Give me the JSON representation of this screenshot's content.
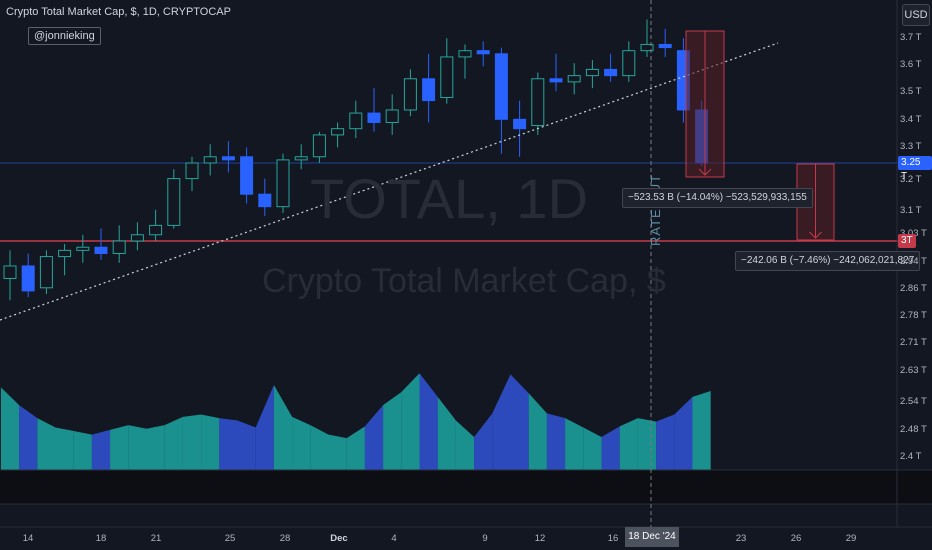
{
  "header": {
    "title": "Crypto Total Market Cap, $, 1D, CRYPTOCAP",
    "author": "@jonnieking",
    "currency": "USD"
  },
  "watermark": {
    "symbol": "TOTAL, 1D",
    "name": "Crypto Total Market Cap, $"
  },
  "annotation": {
    "rate_cut": "RATE CUT"
  },
  "price_axis": {
    "labels": [
      "3.7 T",
      "3.6 T",
      "3.5 T",
      "3.4 T",
      "3.3 T",
      "3.2 T",
      "3.1 T",
      "3.03 T",
      "2.94 T",
      "2.86 T",
      "2.78 T",
      "2.71 T",
      "2.63 T",
      "2.54 T",
      "2.48 T",
      "2.4 T"
    ],
    "current_price": "3.25 T",
    "level_price": "3T"
  },
  "time_axis": {
    "labels": [
      "14",
      "18",
      "21",
      "25",
      "28",
      "Dec",
      "4",
      "9",
      "12",
      "16",
      "23",
      "26",
      "29"
    ],
    "cursor_date": "18 Dec '24"
  },
  "measurements": [
    {
      "text": "−523.53 B (−14.04%) −523,529,933,155"
    },
    {
      "text": "−242.06 B (−7.46%) −242,062,021,827"
    }
  ],
  "colors": {
    "background": "#131722",
    "up": "#26a69a",
    "down": "#2962ff",
    "level_line": "#c43a4b",
    "current_line": "#2962ff",
    "measure_fill": "#5a1f27"
  },
  "chart_data": {
    "type": "candlestick",
    "unit": "T USD",
    "candles": [
      {
        "o": 2.88,
        "h": 2.97,
        "l": 2.81,
        "c": 2.92
      },
      {
        "o": 2.92,
        "h": 2.96,
        "l": 2.82,
        "c": 2.84
      },
      {
        "o": 2.85,
        "h": 2.97,
        "l": 2.83,
        "c": 2.95
      },
      {
        "o": 2.95,
        "h": 2.99,
        "l": 2.89,
        "c": 2.97
      },
      {
        "o": 2.97,
        "h": 3.02,
        "l": 2.93,
        "c": 2.98
      },
      {
        "o": 2.98,
        "h": 3.04,
        "l": 2.94,
        "c": 2.96
      },
      {
        "o": 2.96,
        "h": 3.05,
        "l": 2.93,
        "c": 3.0
      },
      {
        "o": 3.0,
        "h": 3.06,
        "l": 2.97,
        "c": 3.02
      },
      {
        "o": 3.02,
        "h": 3.1,
        "l": 3.0,
        "c": 3.05
      },
      {
        "o": 3.05,
        "h": 3.23,
        "l": 3.04,
        "c": 3.2
      },
      {
        "o": 3.2,
        "h": 3.27,
        "l": 3.16,
        "c": 3.25
      },
      {
        "o": 3.25,
        "h": 3.31,
        "l": 3.21,
        "c": 3.27
      },
      {
        "o": 3.27,
        "h": 3.32,
        "l": 3.22,
        "c": 3.26
      },
      {
        "o": 3.27,
        "h": 3.3,
        "l": 3.12,
        "c": 3.15
      },
      {
        "o": 3.15,
        "h": 3.2,
        "l": 3.08,
        "c": 3.11
      },
      {
        "o": 3.11,
        "h": 3.28,
        "l": 3.09,
        "c": 3.26
      },
      {
        "o": 3.26,
        "h": 3.31,
        "l": 3.23,
        "c": 3.27
      },
      {
        "o": 3.27,
        "h": 3.35,
        "l": 3.25,
        "c": 3.34
      },
      {
        "o": 3.34,
        "h": 3.38,
        "l": 3.3,
        "c": 3.36
      },
      {
        "o": 3.36,
        "h": 3.45,
        "l": 3.33,
        "c": 3.41
      },
      {
        "o": 3.41,
        "h": 3.49,
        "l": 3.35,
        "c": 3.38
      },
      {
        "o": 3.38,
        "h": 3.47,
        "l": 3.34,
        "c": 3.42
      },
      {
        "o": 3.42,
        "h": 3.55,
        "l": 3.4,
        "c": 3.52
      },
      {
        "o": 3.52,
        "h": 3.6,
        "l": 3.38,
        "c": 3.45
      },
      {
        "o": 3.46,
        "h": 3.65,
        "l": 3.44,
        "c": 3.59
      },
      {
        "o": 3.59,
        "h": 3.63,
        "l": 3.52,
        "c": 3.61
      },
      {
        "o": 3.61,
        "h": 3.64,
        "l": 3.56,
        "c": 3.6
      },
      {
        "o": 3.6,
        "h": 3.62,
        "l": 3.28,
        "c": 3.39
      },
      {
        "o": 3.39,
        "h": 3.45,
        "l": 3.27,
        "c": 3.36
      },
      {
        "o": 3.37,
        "h": 3.54,
        "l": 3.34,
        "c": 3.52
      },
      {
        "o": 3.52,
        "h": 3.6,
        "l": 3.48,
        "c": 3.51
      },
      {
        "o": 3.51,
        "h": 3.57,
        "l": 3.47,
        "c": 3.53
      },
      {
        "o": 3.53,
        "h": 3.58,
        "l": 3.49,
        "c": 3.55
      },
      {
        "o": 3.55,
        "h": 3.6,
        "l": 3.51,
        "c": 3.53
      },
      {
        "o": 3.53,
        "h": 3.64,
        "l": 3.51,
        "c": 3.61
      },
      {
        "o": 3.61,
        "h": 3.71,
        "l": 3.59,
        "c": 3.63
      },
      {
        "o": 3.63,
        "h": 3.68,
        "l": 3.59,
        "c": 3.62
      },
      {
        "o": 3.61,
        "h": 3.65,
        "l": 3.38,
        "c": 3.42
      },
      {
        "o": 3.42,
        "h": 3.45,
        "l": 3.24,
        "c": 3.25
      }
    ],
    "volume": [
      0.7,
      0.55,
      0.44,
      0.36,
      0.33,
      0.3,
      0.34,
      0.38,
      0.35,
      0.38,
      0.45,
      0.47,
      0.44,
      0.42,
      0.36,
      0.72,
      0.45,
      0.38,
      0.3,
      0.27,
      0.37,
      0.55,
      0.66,
      0.82,
      0.62,
      0.42,
      0.28,
      0.48,
      0.81,
      0.65,
      0.48,
      0.44,
      0.36,
      0.28,
      0.37,
      0.44,
      0.41,
      0.47,
      0.62
    ],
    "ylim": [
      2.4,
      3.75
    ]
  }
}
